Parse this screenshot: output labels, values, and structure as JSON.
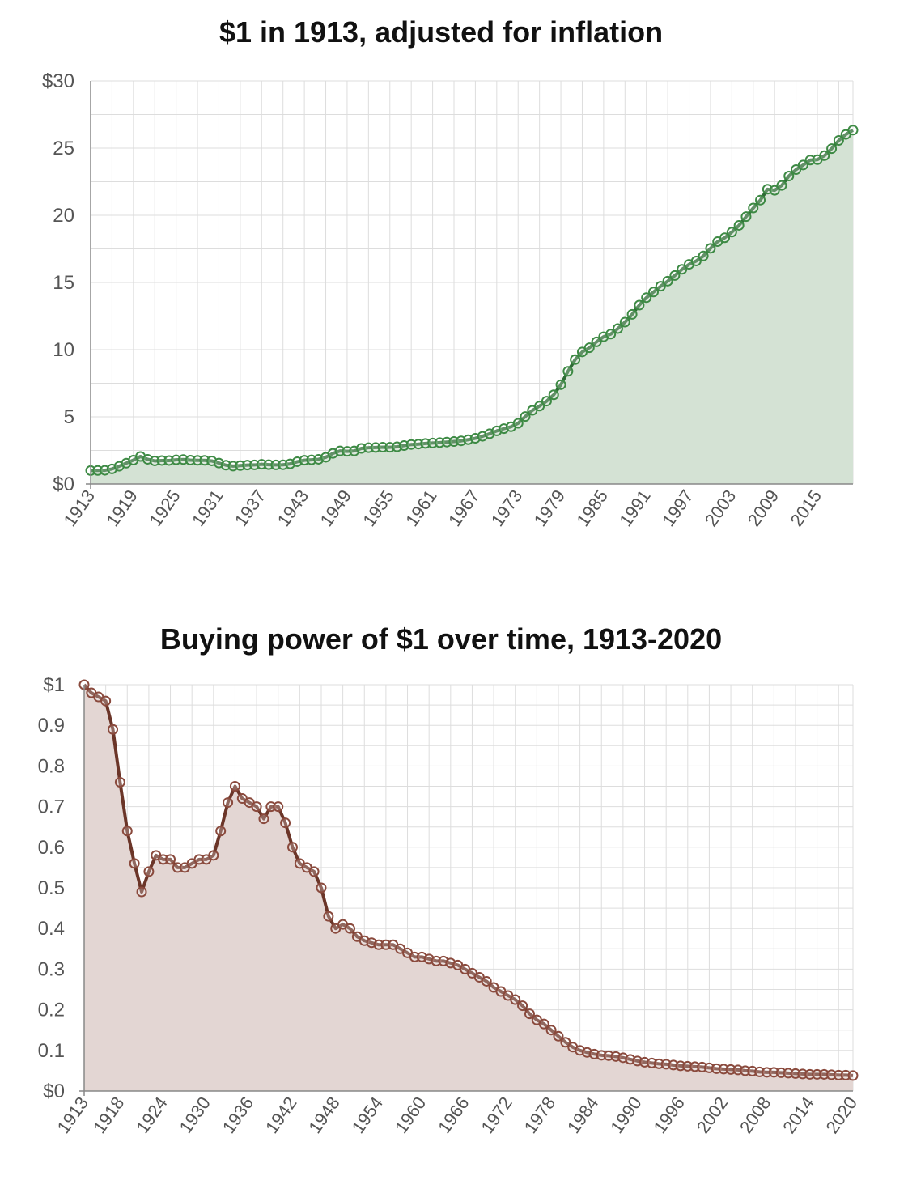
{
  "chart_data": [
    {
      "type": "area",
      "title": "$1 in 1913, adjusted for inflation",
      "xlabel": "",
      "ylabel": "",
      "ylim": [
        0,
        30
      ],
      "xlim": [
        1913,
        2020
      ],
      "y_tick_labels": [
        "$0",
        "5",
        "10",
        "15",
        "20",
        "25",
        "$30"
      ],
      "x_tick_labels": [
        "1913",
        "1919",
        "1925",
        "1931",
        "1937",
        "1943",
        "1949",
        "1955",
        "1961",
        "1967",
        "1973",
        "1979",
        "1985",
        "1991",
        "1997",
        "2003",
        "2009",
        "2015"
      ],
      "grid": true,
      "colors": {
        "line": "#2e6b35",
        "fill": "#d4e2d4",
        "marker": "#3d8a44"
      },
      "series": [
        {
          "x": [
            1913,
            1914,
            1915,
            1916,
            1917,
            1918,
            1919,
            1920,
            1921,
            1922,
            1923,
            1924,
            1925,
            1926,
            1927,
            1928,
            1929,
            1930,
            1931,
            1932,
            1933,
            1934,
            1935,
            1936,
            1937,
            1938,
            1939,
            1940,
            1941,
            1942,
            1943,
            1944,
            1945,
            1946,
            1947,
            1948,
            1949,
            1950,
            1951,
            1952,
            1953,
            1954,
            1955,
            1956,
            1957,
            1958,
            1959,
            1960,
            1961,
            1962,
            1963,
            1964,
            1965,
            1966,
            1967,
            1968,
            1969,
            1970,
            1971,
            1972,
            1973,
            1974,
            1975,
            1976,
            1977,
            1978,
            1979,
            1980,
            1981,
            1982,
            1983,
            1984,
            1985,
            1986,
            1987,
            1988,
            1989,
            1990,
            1991,
            1992,
            1993,
            1994,
            1995,
            1996,
            1997,
            1998,
            1999,
            2000,
            2001,
            2002,
            2003,
            2004,
            2005,
            2006,
            2007,
            2008,
            2009,
            2010,
            2011,
            2012,
            2013,
            2014,
            2015,
            2016,
            2017,
            2018,
            2019,
            2020
          ],
          "y": [
            1.0,
            1.01,
            1.02,
            1.12,
            1.32,
            1.55,
            1.78,
            2.05,
            1.84,
            1.72,
            1.75,
            1.75,
            1.8,
            1.82,
            1.78,
            1.76,
            1.76,
            1.72,
            1.56,
            1.4,
            1.33,
            1.37,
            1.41,
            1.42,
            1.47,
            1.44,
            1.42,
            1.43,
            1.5,
            1.66,
            1.77,
            1.8,
            1.84,
            1.99,
            2.28,
            2.46,
            2.43,
            2.46,
            2.65,
            2.7,
            2.72,
            2.74,
            2.73,
            2.77,
            2.86,
            2.94,
            2.97,
            3.02,
            3.05,
            3.08,
            3.12,
            3.16,
            3.21,
            3.3,
            3.4,
            3.55,
            3.74,
            3.95,
            4.12,
            4.26,
            4.52,
            5.02,
            5.48,
            5.8,
            6.17,
            6.64,
            7.39,
            8.39,
            9.26,
            9.83,
            10.14,
            10.58,
            10.96,
            11.16,
            11.57,
            12.05,
            12.63,
            13.31,
            13.87,
            14.29,
            14.72,
            15.1,
            15.52,
            15.98,
            16.35,
            16.6,
            16.97,
            17.54,
            18.04,
            18.33,
            18.75,
            19.25,
            19.9,
            20.54,
            21.13,
            21.94,
            21.86,
            22.22,
            22.92,
            23.4,
            23.74,
            24.11,
            24.14,
            24.44,
            24.96,
            25.57,
            26.02,
            26.34
          ]
        }
      ]
    },
    {
      "type": "area",
      "title": "Buying power of $1 over time, 1913-2020",
      "xlabel": "",
      "ylabel": "",
      "ylim": [
        0,
        1
      ],
      "xlim": [
        1913,
        2020
      ],
      "y_tick_labels": [
        "$0",
        "0.1",
        "0.2",
        "0.3",
        "0.4",
        "0.5",
        "0.6",
        "0.7",
        "0.8",
        "0.9",
        "$1"
      ],
      "x_tick_labels": [
        "1913",
        "1918",
        "1924",
        "1930",
        "1936",
        "1942",
        "1948",
        "1954",
        "1960",
        "1966",
        "1972",
        "1978",
        "1984",
        "1990",
        "1996",
        "2002",
        "2008",
        "2014",
        "2020"
      ],
      "grid": true,
      "colors": {
        "line": "#6b3528",
        "fill": "#e3d6d3",
        "marker": "#8a4a3d"
      },
      "series": [
        {
          "x": [
            1913,
            1914,
            1915,
            1916,
            1917,
            1918,
            1919,
            1920,
            1921,
            1922,
            1923,
            1924,
            1925,
            1926,
            1927,
            1928,
            1929,
            1930,
            1931,
            1932,
            1933,
            1934,
            1935,
            1936,
            1937,
            1938,
            1939,
            1940,
            1941,
            1942,
            1943,
            1944,
            1945,
            1946,
            1947,
            1948,
            1949,
            1950,
            1951,
            1952,
            1953,
            1954,
            1955,
            1956,
            1957,
            1958,
            1959,
            1960,
            1961,
            1962,
            1963,
            1964,
            1965,
            1966,
            1967,
            1968,
            1969,
            1970,
            1971,
            1972,
            1973,
            1974,
            1975,
            1976,
            1977,
            1978,
            1979,
            1980,
            1981,
            1982,
            1983,
            1984,
            1985,
            1986,
            1987,
            1988,
            1989,
            1990,
            1991,
            1992,
            1993,
            1994,
            1995,
            1996,
            1997,
            1998,
            1999,
            2000,
            2001,
            2002,
            2003,
            2004,
            2005,
            2006,
            2007,
            2008,
            2009,
            2010,
            2011,
            2012,
            2013,
            2014,
            2015,
            2016,
            2017,
            2018,
            2019,
            2020
          ],
          "y": [
            1.0,
            0.98,
            0.97,
            0.96,
            0.89,
            0.76,
            0.64,
            0.56,
            0.49,
            0.54,
            0.58,
            0.57,
            0.57,
            0.55,
            0.55,
            0.56,
            0.57,
            0.57,
            0.58,
            0.64,
            0.71,
            0.75,
            0.72,
            0.71,
            0.7,
            0.67,
            0.7,
            0.7,
            0.66,
            0.6,
            0.56,
            0.55,
            0.54,
            0.5,
            0.43,
            0.4,
            0.41,
            0.4,
            0.38,
            0.37,
            0.365,
            0.36,
            0.36,
            0.36,
            0.35,
            0.34,
            0.33,
            0.33,
            0.325,
            0.32,
            0.32,
            0.315,
            0.31,
            0.3,
            0.29,
            0.28,
            0.27,
            0.255,
            0.245,
            0.235,
            0.225,
            0.21,
            0.19,
            0.175,
            0.165,
            0.15,
            0.135,
            0.12,
            0.108,
            0.1,
            0.095,
            0.091,
            0.088,
            0.087,
            0.085,
            0.082,
            0.078,
            0.074,
            0.071,
            0.069,
            0.067,
            0.066,
            0.064,
            0.062,
            0.061,
            0.06,
            0.059,
            0.057,
            0.055,
            0.054,
            0.053,
            0.052,
            0.05,
            0.049,
            0.047,
            0.046,
            0.046,
            0.045,
            0.044,
            0.043,
            0.042,
            0.041,
            0.041,
            0.041,
            0.04,
            0.039,
            0.039,
            0.038
          ]
        }
      ]
    }
  ]
}
